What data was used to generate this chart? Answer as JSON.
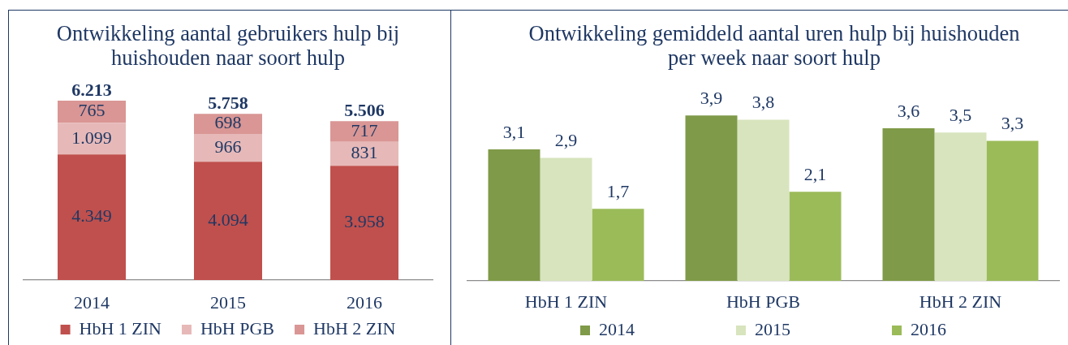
{
  "chart_data": [
    {
      "type": "bar",
      "title": "Ontwikkeling aantal gebruikers hulp bij huishouden naar soort hulp",
      "categories": [
        "2014",
        "2015",
        "2016"
      ],
      "stacked": true,
      "tick_labels": "x",
      "legend": "bottom",
      "series": [
        {
          "name": "HbH 1 ZIN",
          "color": "#c0504d",
          "values": [
            4349,
            4094,
            3958
          ],
          "value_labels": [
            "4.349",
            "4.094",
            "3.958"
          ]
        },
        {
          "name": "HbH PGB",
          "color": "#e6b9b8",
          "values": [
            1099,
            966,
            831
          ],
          "value_labels": [
            "1.099",
            "966",
            "831"
          ]
        },
        {
          "name": "HbH 2 ZIN",
          "color": "#d99694",
          "values": [
            765,
            698,
            717
          ],
          "value_labels": [
            "765",
            "698",
            "717"
          ]
        }
      ],
      "totals": [
        "6.213",
        "5.758",
        "5.506"
      ]
    },
    {
      "type": "bar",
      "title": "Ontwikkeling gemiddeld aantal uren hulp bij huishouden per week naar soort hulp",
      "categories": [
        "HbH 1 ZIN",
        "HbH PGB",
        "HbH 2 ZIN"
      ],
      "tick_labels": "x",
      "legend": "bottom",
      "series": [
        {
          "name": "2014",
          "color": "#7f9a48",
          "values": [
            3.1,
            3.9,
            3.6
          ],
          "value_labels": [
            "3,1",
            "3,9",
            "3,6"
          ]
        },
        {
          "name": "2015",
          "color": "#d7e4bd",
          "values": [
            2.9,
            3.8,
            3.5
          ],
          "value_labels": [
            "2,9",
            "3,8",
            "3,5"
          ]
        },
        {
          "name": "2016",
          "color": "#9bbb59",
          "values": [
            1.7,
            2.1,
            3.3
          ],
          "value_labels": [
            "1,7",
            "2,1",
            "3,3"
          ]
        }
      ]
    }
  ]
}
